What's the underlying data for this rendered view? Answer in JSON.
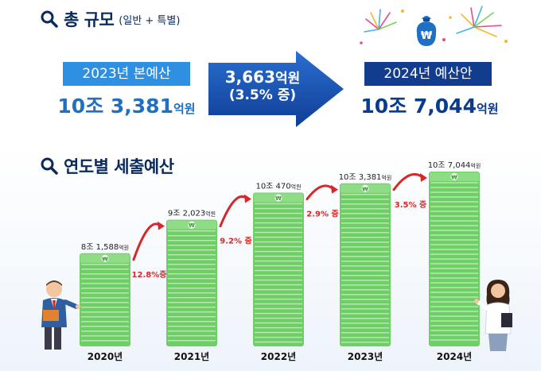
{
  "section1": {
    "title": "총 규모",
    "subtitle": "(일반 + 특별)"
  },
  "budget2023": {
    "label": "2023년 본예산",
    "amount_big": "10조 3,381",
    "amount_unit": "억원"
  },
  "increase": {
    "amount_big": "3,663",
    "amount_unit": "억원",
    "pct": "(3.5% 증)"
  },
  "budget2024": {
    "label": "2024년 예산안",
    "amount_big": "10조 7,044",
    "amount_unit": "억원"
  },
  "section2": {
    "title": "연도별 세출예산"
  },
  "colors": {
    "title_navy": "#0b2a5c",
    "box_blue": "#2f8fe0",
    "box_navy": "#123d8f",
    "arrow_blue": "#1651b4",
    "amount_blue": "#1f6fc4",
    "money_green": "#6fcf67",
    "money_stripe": "#b8ecb0",
    "growth_red": "#d62828",
    "background_bottom": "#eef4fb"
  },
  "chart_data": {
    "type": "bar",
    "categories": [
      "2020년",
      "2021년",
      "2022년",
      "2023년",
      "2024년"
    ],
    "values": [
      81588,
      92023,
      100470,
      103381,
      107044
    ],
    "value_labels": [
      {
        "main": "8조 1,588",
        "unit": "억원"
      },
      {
        "main": "9조 2,023",
        "unit": "억원"
      },
      {
        "main": "10조 470",
        "unit": "억원"
      },
      {
        "main": "10조 3,381",
        "unit": "억원"
      },
      {
        "main": "10조 7,044",
        "unit": "억원"
      }
    ],
    "growth": [
      "12.8%증",
      "9.2% 증",
      "2.9% 증",
      "3.5% 증"
    ],
    "unit": "억원",
    "bar_style": "stacked-banknotes",
    "grid": false,
    "legend": "none"
  }
}
